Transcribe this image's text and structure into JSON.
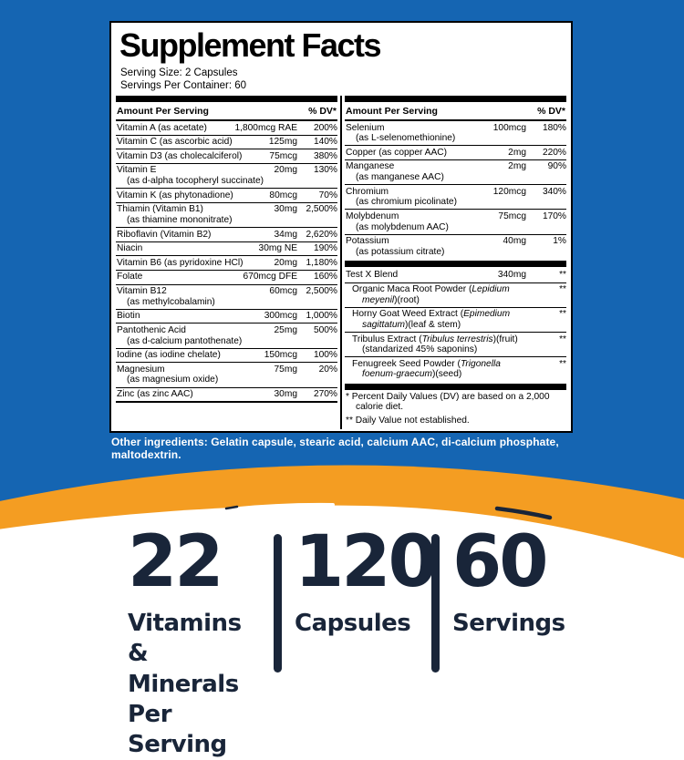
{
  "colors": {
    "background_blue": "#1565b2",
    "swoosh_orange": "#f49d22",
    "navy": "#192539",
    "panel_bg": "#ffffff",
    "rule_black": "#000000"
  },
  "panel": {
    "title": "Supplement Facts",
    "serving_size": "Serving Size: 2 Capsules",
    "servings_per_container": "Servings Per Container: 60",
    "column_header": {
      "amount": "Amount Per Serving",
      "dv": "% DV*"
    },
    "left_rows": [
      {
        "name": "Vitamin A (as acetate)",
        "sub": "",
        "amount": "1,800mcg RAE",
        "dv": "200%"
      },
      {
        "name": "Vitamin C (as ascorbic acid)",
        "sub": "",
        "amount": "125mg",
        "dv": "140%"
      },
      {
        "name": "Vitamin D3 (as cholecalciferol)",
        "sub": "",
        "amount": "75mcg",
        "dv": "380%"
      },
      {
        "name": "Vitamin E",
        "sub": "(as d-alpha tocopheryl succinate)",
        "amount": "20mg",
        "dv": "130%"
      },
      {
        "name": "Vitamin K (as phytonadione)",
        "sub": "",
        "amount": "80mcg",
        "dv": "70%"
      },
      {
        "name": "Thiamin (Vitamin B1)",
        "sub": "(as thiamine mononitrate)",
        "amount": "30mg",
        "dv": "2,500%"
      },
      {
        "name": "Riboflavin (Vitamin B2)",
        "sub": "",
        "amount": "34mg",
        "dv": "2,620%"
      },
      {
        "name": "Niacin",
        "sub": "",
        "amount": "30mg NE",
        "dv": "190%"
      },
      {
        "name": "Vitamin B6 (as pyridoxine HCl)",
        "sub": "",
        "amount": "20mg",
        "dv": "1,180%"
      },
      {
        "name": "Folate",
        "sub": "",
        "amount": "670mcg DFE",
        "dv": "160%"
      },
      {
        "name": "Vitamin B12",
        "sub": "(as methylcobalamin)",
        "amount": "60mcg",
        "dv": "2,500%"
      },
      {
        "name": "Biotin",
        "sub": "",
        "amount": "300mcg",
        "dv": "1,000%"
      },
      {
        "name": "Pantothenic Acid",
        "sub": "(as d-calcium pantothenate)",
        "amount": "25mg",
        "dv": "500%"
      },
      {
        "name": "Iodine (as iodine chelate)",
        "sub": "",
        "amount": "150mcg",
        "dv": "100%"
      },
      {
        "name": "Magnesium",
        "sub": "(as magnesium oxide)",
        "amount": "75mg",
        "dv": "20%"
      },
      {
        "name": "Zinc (as zinc AAC)",
        "sub": "",
        "amount": "30mg",
        "dv": "270%"
      }
    ],
    "right_rows": [
      {
        "name": "Selenium",
        "sub": "(as L-selenomethionine)",
        "amount": "100mcg",
        "dv": "180%"
      },
      {
        "name": "Copper (as copper AAC)",
        "sub": "",
        "amount": "2mg",
        "dv": "220%"
      },
      {
        "name": "Manganese",
        "sub": "(as manganese AAC)",
        "amount": "2mg",
        "dv": "90%"
      },
      {
        "name": "Chromium",
        "sub": "(as chromium picolinate)",
        "amount": "120mcg",
        "dv": "340%"
      },
      {
        "name": "Molybdenum",
        "sub": "(as molybdenum AAC)",
        "amount": "75mcg",
        "dv": "170%"
      },
      {
        "name": "Potassium",
        "sub": "(as potassium citrate)",
        "amount": "40mg",
        "dv": "1%"
      }
    ],
    "blend": {
      "header": {
        "name": "Test X Blend",
        "amount": "340mg",
        "dv": "**"
      },
      "items": [
        {
          "segments": [
            {
              "t": "Organic Maca Root Powder ("
            },
            {
              "t": "Lepidium meyenil",
              "i": true
            },
            {
              "t": ")(root)"
            }
          ],
          "dv": "**"
        },
        {
          "segments": [
            {
              "t": "Horny Goat Weed Extract ("
            },
            {
              "t": "Epimedium sagittatum",
              "i": true
            },
            {
              "t": ")(leaf & stem)"
            }
          ],
          "dv": "**"
        },
        {
          "segments": [
            {
              "t": "Tribulus Extract ("
            },
            {
              "t": "Tribulus terrestris",
              "i": true
            },
            {
              "t": ")(fruit) (standarized 45% saponins)"
            }
          ],
          "dv": "**"
        },
        {
          "segments": [
            {
              "t": "Fenugreek Seed Powder ("
            },
            {
              "t": "Trigonella foenum-graecum",
              "i": true
            },
            {
              "t": ")(seed)"
            }
          ],
          "dv": "**"
        }
      ]
    },
    "footnotes": [
      "* Percent Daily Values (DV) are based on a 2,000 calorie diet.",
      "** Daily Value not established."
    ]
  },
  "other_ingredients": "Other ingredients: Gelatin capsule, stearic acid, calcium AAC, di-calcium phosphate, maltodextrin.",
  "stats": [
    {
      "value": "22",
      "label": "Vitamins &\nMinerals\nPer Serving"
    },
    {
      "value": "120",
      "label": "Capsules"
    },
    {
      "value": "60",
      "label": "Servings"
    }
  ]
}
